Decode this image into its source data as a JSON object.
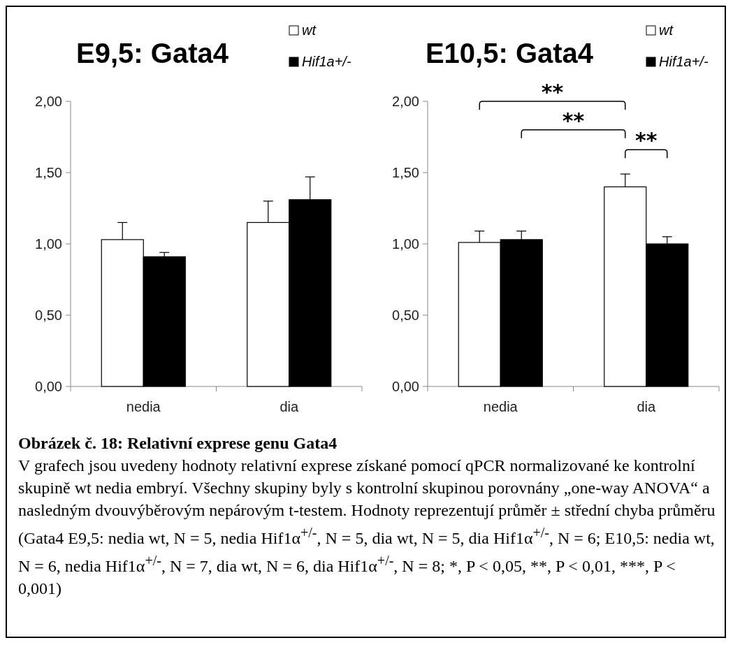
{
  "chart_data": [
    {
      "type": "bar",
      "title": "E9,5: Gata4",
      "categories": [
        "nedia",
        "dia"
      ],
      "series": [
        {
          "name": "wt",
          "color": "#ffffff",
          "values": [
            1.03,
            1.15
          ],
          "errors": [
            [
              1.03,
              1.15
            ],
            [
              1.15,
              1.3
            ]
          ]
        },
        {
          "name": "Hif1a+/-",
          "color": "#000000",
          "values": [
            0.91,
            1.31
          ],
          "errors": [
            [
              0.91,
              0.94
            ],
            [
              1.31,
              1.47
            ]
          ]
        }
      ],
      "ylim": [
        0,
        2
      ],
      "yticks": [
        {
          "value": 0,
          "label": "0,00"
        },
        {
          "value": 0.5,
          "label": "0,50"
        },
        {
          "value": 1,
          "label": "1,00"
        },
        {
          "value": 1.5,
          "label": "1,50"
        },
        {
          "value": 2,
          "label": "2,00"
        }
      ],
      "legend": "top right",
      "annotations": [
        "Obrázek č. 18: Relativní exprese genu Gata4",
        "V grafech jsou uvedeny hodnoty relativní exprese získané pomocí qPCR normalizované ke kontrolní skupině wt nedia embryí. Všechny skupiny byly s kontrolní skupinou porovnány „one-way ANOVA“ a nasledným dvouvýběrovým nepárovým t-testem. Hodnoty reprezentují průměr ± střední chyba průměru (Gata4 E9,5: nedia wt, N = 5, nedia Hif1α$^{+/-}$, N = 5, dia wt, N = 5, dia Hif1α$^{+/-}$, N = 6; E10,5: nedia wt, N = 6, nedia Hif1α$^{+/-}$, N = 7, dia wt, N = 6, dia Hif1α$^{+/-}$, N = 8;",
        "*, P < 0,05, **, P < 0,01, ***, P < 0,001)"
      ]
    },
    {
      "type": "bar",
      "title": "E10,5: Gata4",
      "categories": [
        "nedia",
        "dia"
      ],
      "series": [
        {
          "name": "wt",
          "color": "#ffffff",
          "values": [
            1.01,
            1.4
          ],
          "errors": [
            [
              1.01,
              1.09
            ],
            [
              1.4,
              1.49
            ]
          ]
        },
        {
          "name": "Hif1a+/-",
          "color": "#000000",
          "values": [
            1.03,
            1.0
          ],
          "errors": [
            [
              1.03,
              1.09
            ],
            [
              1.0,
              1.05
            ]
          ]
        }
      ],
      "ylim": [
        0,
        2
      ],
      "yticks": [
        {
          "value": 0,
          "label": "0,00"
        },
        {
          "value": 0.5,
          "label": "0,50"
        },
        {
          "value": 1,
          "label": "1,00"
        },
        {
          "value": 1.5,
          "label": "1,50"
        },
        {
          "value": 2,
          "label": "2,00"
        }
      ],
      "legend": "top right",
      "annotations": [
        "**",
        "**",
        "**"
      ]
    }
  ]
}
